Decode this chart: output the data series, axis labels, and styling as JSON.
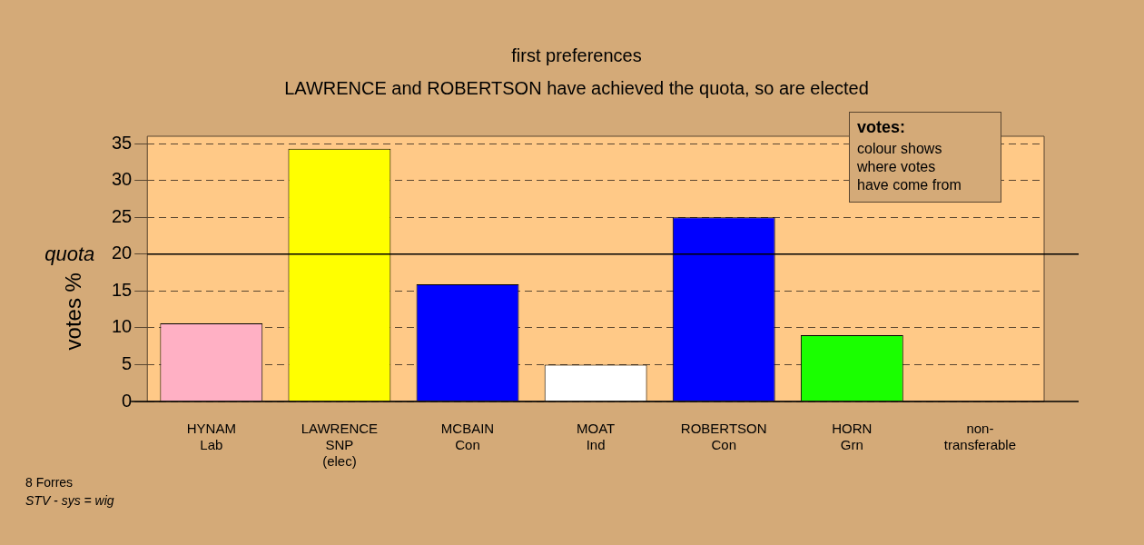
{
  "chart_data": {
    "type": "bar",
    "title": "first preferences",
    "subtitle": "LAWRENCE and ROBERTSON have achieved the quota, so are elected",
    "ylabel": "votes %",
    "categories": [
      "HYNAM\nLab",
      "LAWRENCE\nSNP\n(elec)",
      "MCBAIN\nCon",
      "MOAT\nInd",
      "ROBERTSON\nCon",
      "HORN\nGrn",
      "non-\ntransferable"
    ],
    "values": [
      10.6,
      34.3,
      15.9,
      5.0,
      25.0,
      9.0,
      0
    ],
    "colors": [
      "#ffb0c4",
      "#ffff00",
      "#0000ff",
      "#ffffff",
      "#0000ff",
      "#1aff00",
      "#d4aa78"
    ],
    "ylim": [
      0,
      36
    ],
    "yticks": [
      0,
      5,
      10,
      15,
      20,
      25,
      30,
      35
    ],
    "grid": "y",
    "legend": false,
    "ref_lines": [
      {
        "axis": "y",
        "value": 20,
        "label": "quota"
      }
    ],
    "annotations": [
      "votes:",
      "colour shows\nwhere votes\nhave come from",
      "8 Forres",
      "STV - sys = wig"
    ]
  }
}
